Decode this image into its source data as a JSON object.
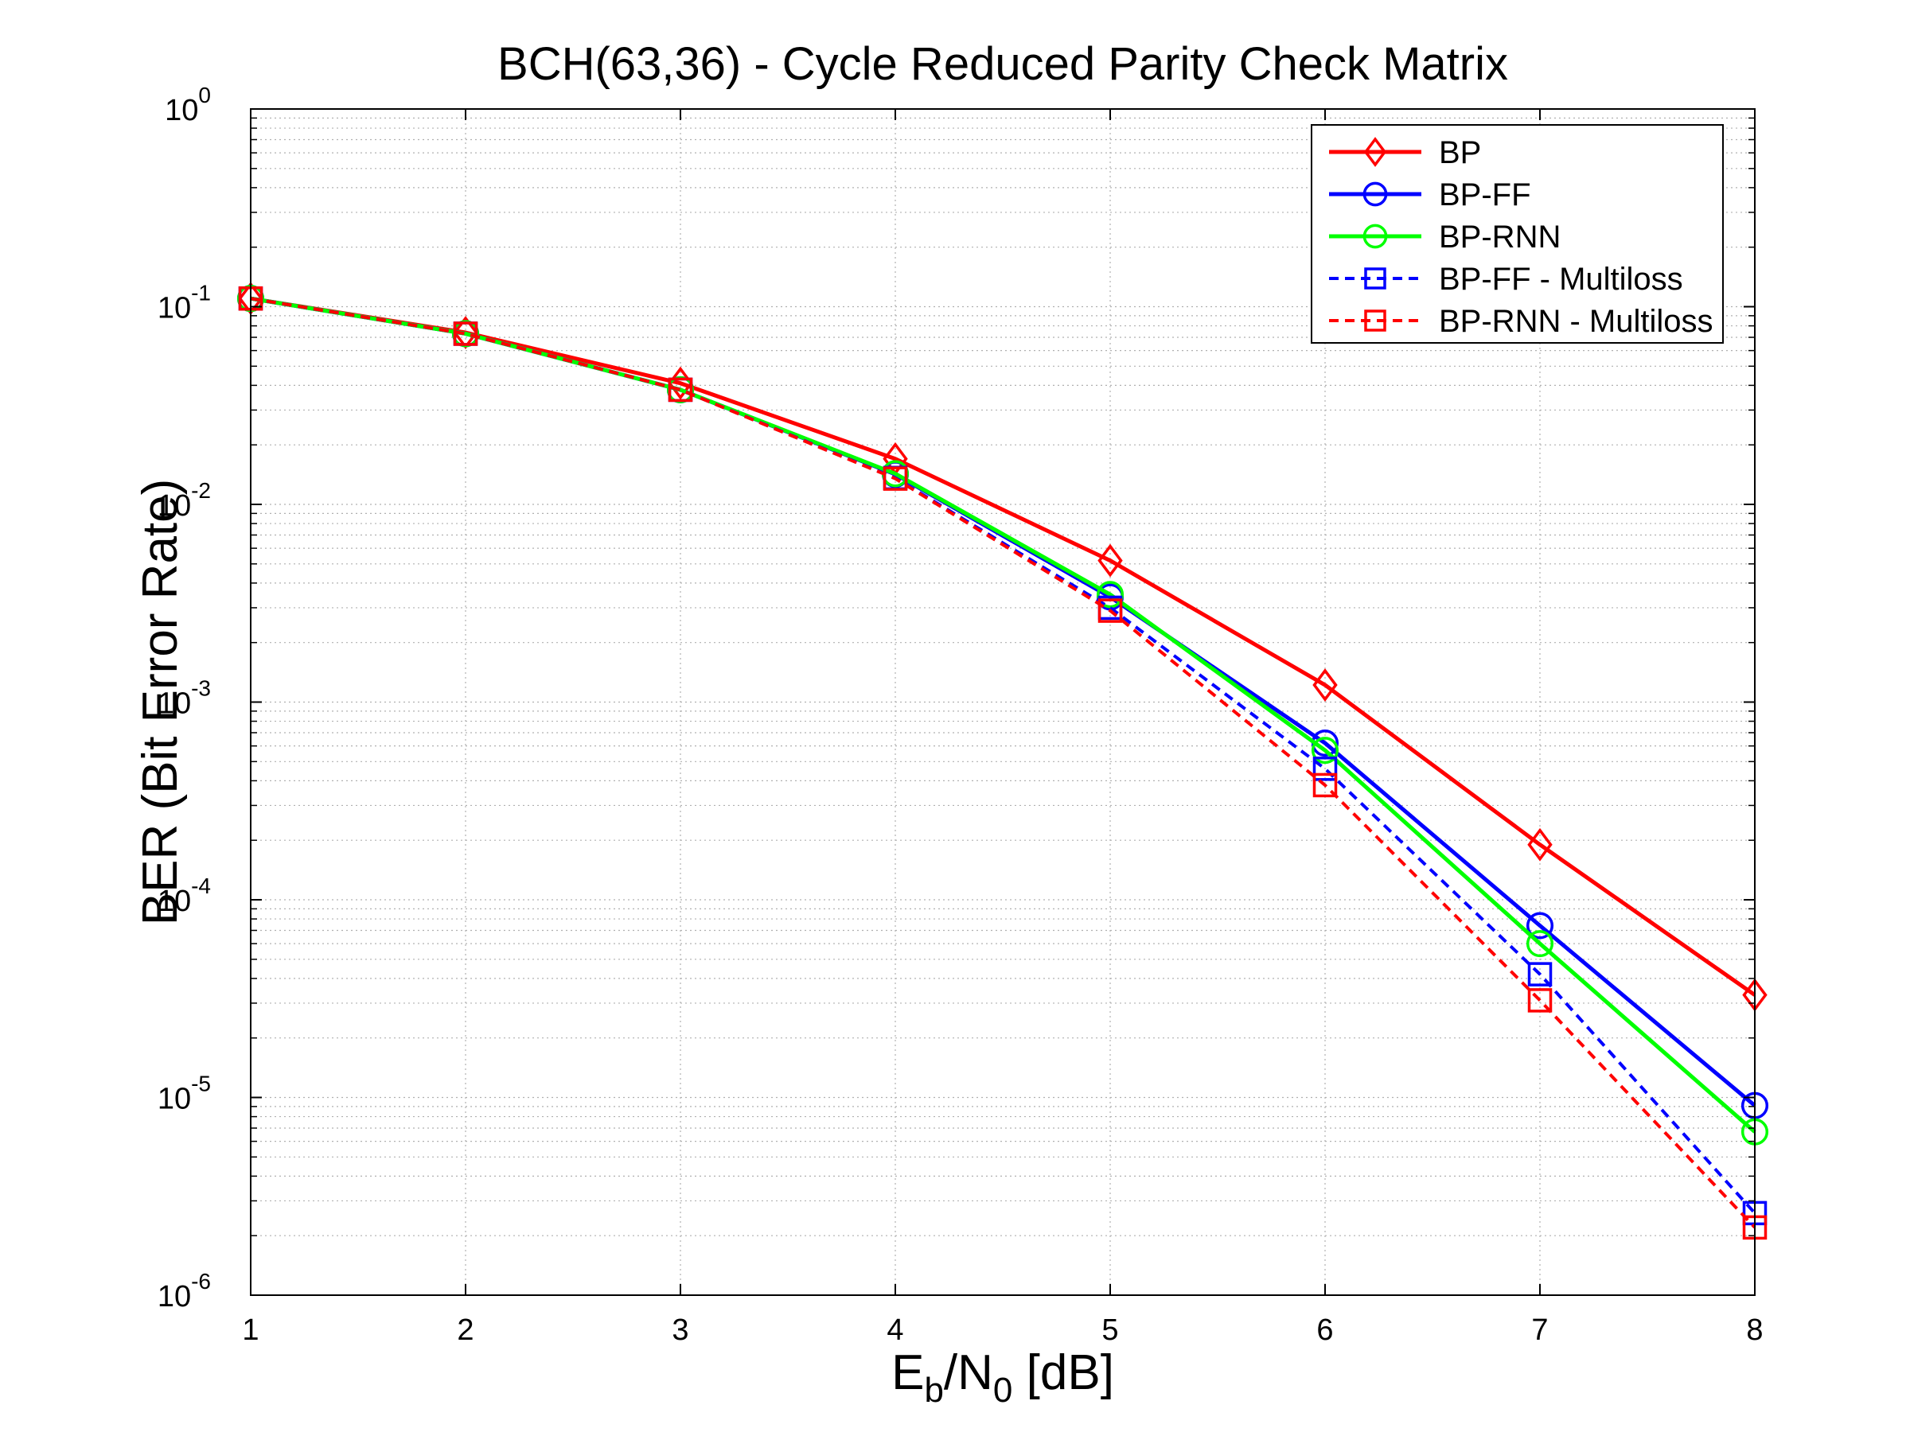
{
  "chart_data": {
    "type": "line",
    "title": "BCH(63,36) - Cycle Reduced Parity Check Matrix",
    "xlabel": {
      "main": "E",
      "sub1": "b",
      "mid": "/N",
      "sub2": "0",
      "tail": " [dB]"
    },
    "ylabel": "BER (Bit Error Rate)",
    "xlim": [
      1,
      8
    ],
    "ylim": [
      1e-06,
      1
    ],
    "yscale": "log",
    "grid": true,
    "legend_position": "top-right",
    "x": [
      1,
      2,
      3,
      4,
      5,
      6,
      7,
      8
    ],
    "x_ticks": [
      "1",
      "2",
      "3",
      "4",
      "5",
      "6",
      "7",
      "8"
    ],
    "y_ticks": [
      {
        "base": "10",
        "exp": "0"
      },
      {
        "base": "10",
        "exp": "-1"
      },
      {
        "base": "10",
        "exp": "-2"
      },
      {
        "base": "10",
        "exp": "-3"
      },
      {
        "base": "10",
        "exp": "-4"
      },
      {
        "base": "10",
        "exp": "-5"
      },
      {
        "base": "10",
        "exp": "-6"
      }
    ],
    "series": [
      {
        "name": "BP",
        "color": "#ff0000",
        "marker": "diamond",
        "dash": "solid",
        "values": [
          0.11,
          0.074,
          0.041,
          0.017,
          0.0052,
          0.00122,
          0.00019,
          3.3e-05
        ]
      },
      {
        "name": "BP-FF",
        "color": "#0000ff",
        "marker": "circle",
        "dash": "solid",
        "values": [
          0.11,
          0.073,
          0.038,
          0.0142,
          0.0034,
          0.00062,
          7.4e-05,
          9.1e-06
        ]
      },
      {
        "name": "BP-RNN",
        "color": "#00ff00",
        "marker": "circle",
        "dash": "solid",
        "values": [
          0.11,
          0.073,
          0.038,
          0.0143,
          0.0035,
          0.00057,
          6e-05,
          6.7e-06
        ]
      },
      {
        "name": "BP-FF - Multiloss",
        "color": "#0000ff",
        "marker": "square",
        "dash": "dashed",
        "values": [
          0.11,
          0.073,
          0.038,
          0.0136,
          0.003,
          0.00046,
          4.2e-05,
          2.6e-06
        ]
      },
      {
        "name": "BP-RNN - Multiloss",
        "color": "#ff0000",
        "marker": "square",
        "dash": "dashed",
        "values": [
          0.11,
          0.073,
          0.038,
          0.0135,
          0.0029,
          0.00038,
          3.1e-05,
          2.2e-06
        ]
      }
    ]
  }
}
